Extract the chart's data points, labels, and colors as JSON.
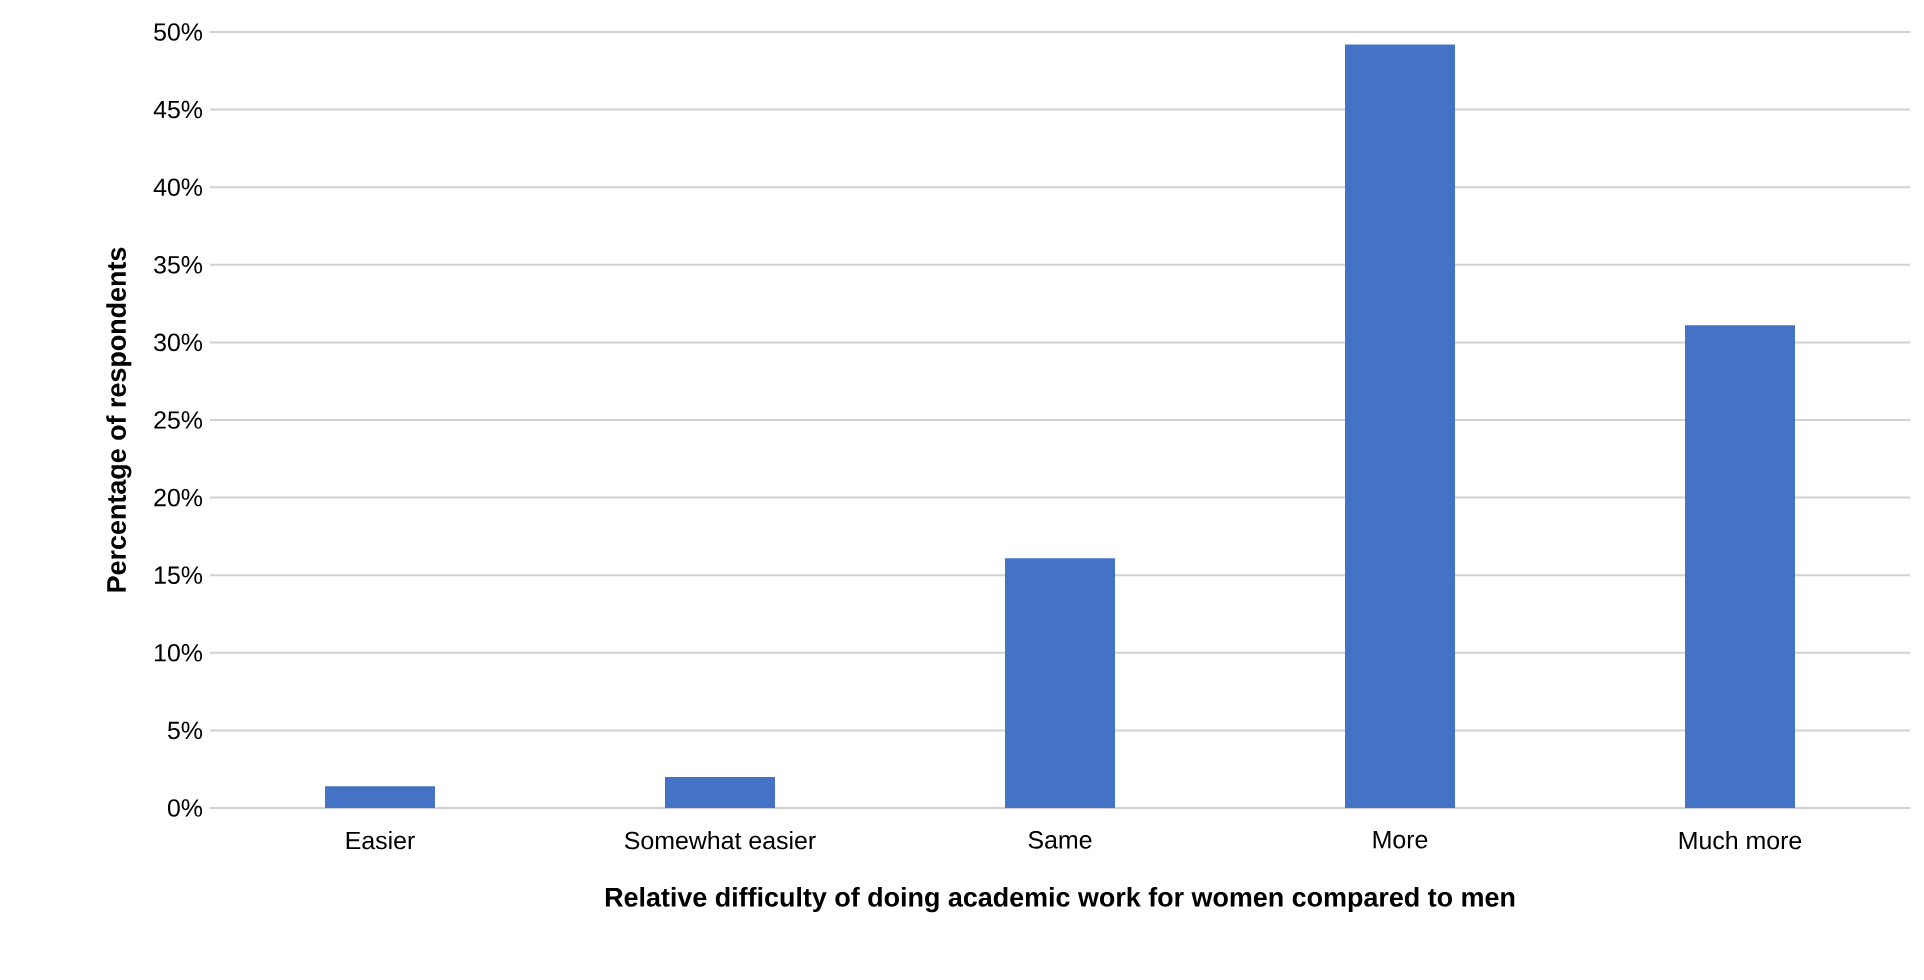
{
  "chart_data": {
    "type": "bar",
    "xlabel": "Relative difficulty of doing academic work for women compared to men",
    "ylabel": "Percentage of respondents",
    "categories": [
      "Easier",
      "Somewhat easier",
      "Same",
      "More",
      "Much more"
    ],
    "values": [
      1.4,
      2.0,
      16.1,
      49.2,
      31.1
    ],
    "color": "#4472c4",
    "ylim": [
      0,
      50
    ],
    "yticks": [
      {
        "value": 0,
        "label": "0%"
      },
      {
        "value": 5,
        "label": "5%"
      },
      {
        "value": 10,
        "label": "10%"
      },
      {
        "value": 15,
        "label": "15%"
      },
      {
        "value": 20,
        "label": "20%"
      },
      {
        "value": 25,
        "label": "25%"
      },
      {
        "value": 30,
        "label": "30%"
      },
      {
        "value": 35,
        "label": "35%"
      },
      {
        "value": 40,
        "label": "40%"
      },
      {
        "value": 45,
        "label": "45%"
      },
      {
        "value": 50,
        "label": "50%"
      }
    ],
    "grid": "y"
  }
}
